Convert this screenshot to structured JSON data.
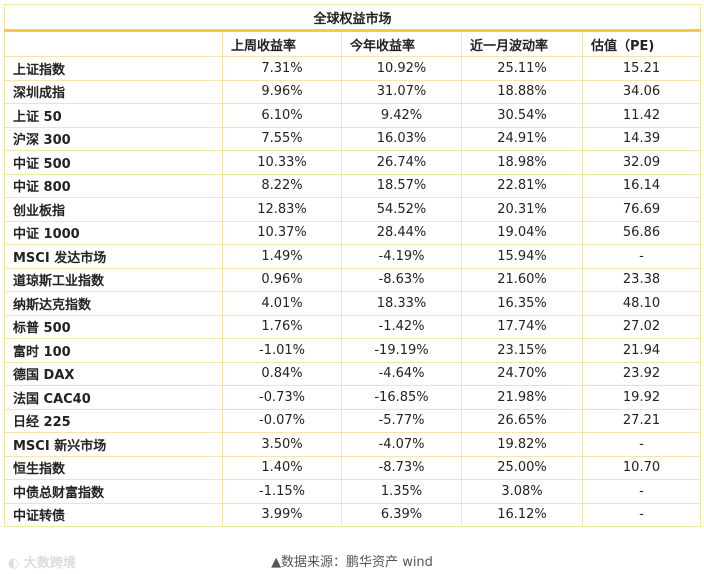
{
  "title": "全球权益市场",
  "headers": [
    "",
    "上周收益率",
    "今年收益率",
    "近一月波动率",
    "估值（PE)"
  ],
  "rows": [
    [
      "上证指数",
      "7.31%",
      "10.92%",
      "25.11%",
      "15.21"
    ],
    [
      "深圳成指",
      "9.96%",
      "31.07%",
      "18.88%",
      "34.06"
    ],
    [
      "上证 50",
      "6.10%",
      "9.42%",
      "30.54%",
      "11.42"
    ],
    [
      "沪深 300",
      "7.55%",
      "16.03%",
      "24.91%",
      "14.39"
    ],
    [
      "中证 500",
      "10.33%",
      "26.74%",
      "18.98%",
      "32.09"
    ],
    [
      "中证 800",
      "8.22%",
      "18.57%",
      "22.81%",
      "16.14"
    ],
    [
      "创业板指",
      "12.83%",
      "54.52%",
      "20.31%",
      "76.69"
    ],
    [
      "中证 1000",
      "10.37%",
      "28.44%",
      "19.04%",
      "56.86"
    ],
    [
      "MSCI 发达市场",
      "1.49%",
      "-4.19%",
      "15.94%",
      "-"
    ],
    [
      "道琼斯工业指数",
      "0.96%",
      "-8.63%",
      "21.60%",
      "23.38"
    ],
    [
      "纳斯达克指数",
      "4.01%",
      "18.33%",
      "16.35%",
      "48.10"
    ],
    [
      "标普 500",
      "1.76%",
      "-1.42%",
      "17.74%",
      "27.02"
    ],
    [
      "富时 100",
      "-1.01%",
      "-19.19%",
      "23.15%",
      "21.94"
    ],
    [
      "德国 DAX",
      "0.84%",
      "-4.64%",
      "24.70%",
      "23.92"
    ],
    [
      "法国 CAC40",
      "-0.73%",
      "-16.85%",
      "21.98%",
      "19.92"
    ],
    [
      "日经 225",
      "-0.07%",
      "-5.77%",
      "26.65%",
      "27.21"
    ],
    [
      "MSCI 新兴市场",
      "3.50%",
      "-4.07%",
      "19.82%",
      "-"
    ],
    [
      "恒生指数",
      "1.40%",
      "-8.73%",
      "25.00%",
      "10.70"
    ],
    [
      "中债总财富指数",
      "-1.15%",
      "1.35%",
      "3.08%",
      "-"
    ],
    [
      "中证转债",
      "3.99%",
      "6.39%",
      "16.12%",
      "-"
    ]
  ],
  "source": "▲数据来源：鹏华资产  wind",
  "watermark": "大数跨境",
  "colors": {
    "border": "#f6e5a8",
    "accent": "#f5c94a"
  }
}
